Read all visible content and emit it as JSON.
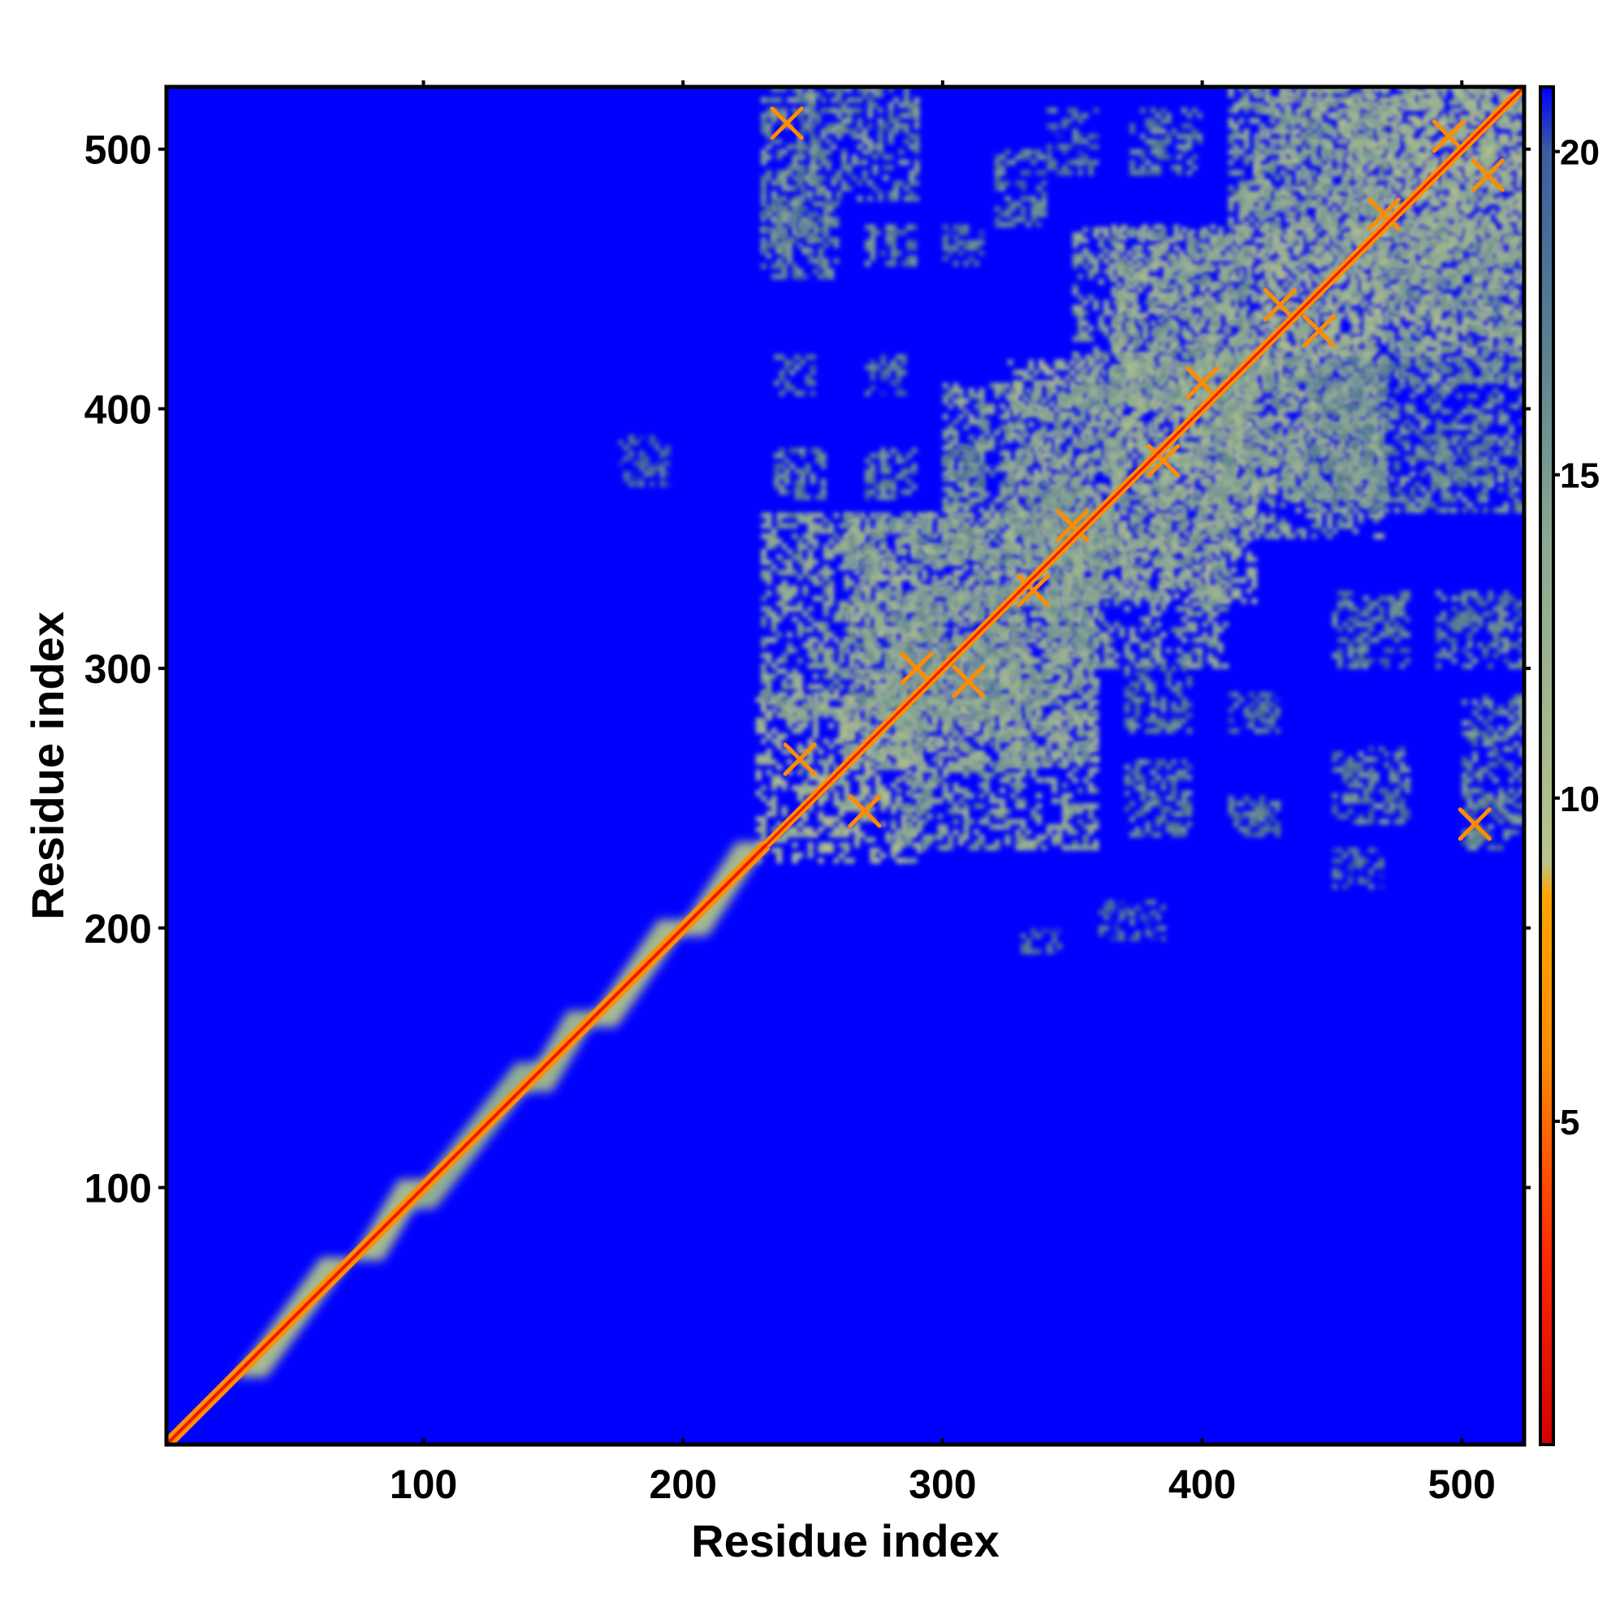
{
  "chart_data": {
    "type": "heatmap",
    "title": "",
    "xlabel": "Residue index",
    "ylabel": "Residue index",
    "xlim": [
      1,
      524
    ],
    "ylim": [
      1,
      524
    ],
    "x_ticks": [
      100,
      200,
      300,
      400,
      500
    ],
    "x_tick_labels": [
      "100",
      "200",
      "300",
      "400",
      "500"
    ],
    "y_ticks": [
      100,
      200,
      300,
      400,
      500
    ],
    "y_tick_labels": [
      "100",
      "200",
      "300",
      "400",
      "500"
    ],
    "colorbar": {
      "range": [
        0,
        21
      ],
      "ticks": [
        5,
        10,
        15,
        20
      ],
      "tick_labels": [
        "5",
        "10",
        "15",
        "20"
      ],
      "colors": [
        {
          "value": 0,
          "color": "#d40000"
        },
        {
          "value": 3,
          "color": "#ff2a00"
        },
        {
          "value": 6,
          "color": "#ff8c00"
        },
        {
          "value": 8.5,
          "color": "#ffa500"
        },
        {
          "value": 9,
          "color": "#b8c48a"
        },
        {
          "value": 14,
          "color": "#8aa893"
        },
        {
          "value": 17,
          "color": "#5a8090"
        },
        {
          "value": 20,
          "color": "#3a5ea0"
        },
        {
          "value": 21,
          "color": "#0000ff"
        }
      ]
    },
    "background_value": 21,
    "diagonal_value": 3.8,
    "diagonal_segments": [
      {
        "from": 1,
        "to": 232,
        "width": 4
      },
      {
        "from": 232,
        "to": 524,
        "width": 3
      }
    ],
    "local_blocks": [
      {
        "x": [
          30,
          70
        ],
        "y": [
          30,
          70
        ],
        "value": 11
      },
      {
        "x": [
          75,
          100
        ],
        "y": [
          75,
          100
        ],
        "value": 11
      },
      {
        "x": [
          95,
          145
        ],
        "y": [
          95,
          145
        ],
        "value": 13
      },
      {
        "x": [
          140,
          165
        ],
        "y": [
          140,
          165
        ],
        "value": 12
      },
      {
        "x": [
          165,
          200
        ],
        "y": [
          165,
          200
        ],
        "value": 11
      },
      {
        "x": [
          200,
          230
        ],
        "y": [
          200,
          230
        ],
        "value": 11
      }
    ],
    "contact_regions": [
      {
        "x": [
          228,
          292
        ],
        "y": [
          225,
          290
        ],
        "value": 12
      },
      {
        "x": [
          262,
          360
        ],
        "y": [
          262,
          360
        ],
        "value": 12
      },
      {
        "x": [
          325,
          420
        ],
        "y": [
          325,
          420
        ],
        "value": 12
      },
      {
        "x": [
          365,
          470
        ],
        "y": [
          365,
          470
        ],
        "value": 12
      },
      {
        "x": [
          420,
          524
        ],
        "y": [
          420,
          524
        ],
        "value": 12
      },
      {
        "x": [
          455,
          524
        ],
        "y": [
          455,
          524
        ],
        "value": 12
      },
      {
        "x": [
          230,
          330
        ],
        "y": [
          280,
          360
        ],
        "value": 14
      },
      {
        "x": [
          280,
          360
        ],
        "y": [
          230,
          330
        ],
        "value": 14
      },
      {
        "x": [
          340,
          410
        ],
        "y": [
          300,
          370
        ],
        "value": 14
      },
      {
        "x": [
          300,
          370
        ],
        "y": [
          340,
          410
        ],
        "value": 14
      },
      {
        "x": [
          400,
          470
        ],
        "y": [
          350,
          420
        ],
        "value": 14
      },
      {
        "x": [
          350,
          420
        ],
        "y": [
          400,
          470
        ],
        "value": 14
      },
      {
        "x": [
          470,
          524
        ],
        "y": [
          410,
          470
        ],
        "value": 14
      },
      {
        "x": [
          410,
          470
        ],
        "y": [
          470,
          524
        ],
        "value": 14
      },
      {
        "x": [
          440,
          524
        ],
        "y": [
          360,
          420
        ],
        "value": 16
      },
      {
        "x": [
          500,
          524
        ],
        "y": [
          230,
          290
        ],
        "value": 16
      },
      {
        "x": [
          230,
          250
        ],
        "y": [
          460,
          524
        ],
        "value": 16
      },
      {
        "x": [
          245,
          290
        ],
        "y": [
          480,
          524
        ],
        "value": 16
      }
    ],
    "crossing_patterns": [
      {
        "x": 245,
        "y": 265,
        "value": 6
      },
      {
        "x": 270,
        "y": 245,
        "value": 6
      },
      {
        "x": 290,
        "y": 300,
        "value": 6
      },
      {
        "x": 310,
        "y": 295,
        "value": 6
      },
      {
        "x": 335,
        "y": 330,
        "value": 6
      },
      {
        "x": 350,
        "y": 355,
        "value": 6
      },
      {
        "x": 385,
        "y": 380,
        "value": 6
      },
      {
        "x": 400,
        "y": 410,
        "value": 6
      },
      {
        "x": 430,
        "y": 440,
        "value": 6
      },
      {
        "x": 445,
        "y": 430,
        "value": 6
      },
      {
        "x": 470,
        "y": 475,
        "value": 6
      },
      {
        "x": 495,
        "y": 505,
        "value": 6
      },
      {
        "x": 510,
        "y": 490,
        "value": 6
      },
      {
        "x": 240,
        "y": 510,
        "value": 6
      },
      {
        "x": 505,
        "y": 240,
        "value": 6
      }
    ],
    "scattered_patches": [
      {
        "x": [
          230,
          260
        ],
        "y": [
          450,
          480
        ],
        "value": 17
      },
      {
        "x": [
          270,
          290
        ],
        "y": [
          455,
          470
        ],
        "value": 17
      },
      {
        "x": [
          300,
          315
        ],
        "y": [
          455,
          470
        ],
        "value": 18
      },
      {
        "x": [
          320,
          340
        ],
        "y": [
          470,
          500
        ],
        "value": 17
      },
      {
        "x": [
          340,
          360
        ],
        "y": [
          490,
          515
        ],
        "value": 18
      },
      {
        "x": [
          372,
          400
        ],
        "y": [
          490,
          515
        ],
        "value": 17
      },
      {
        "x": [
          235,
          250
        ],
        "y": [
          405,
          420
        ],
        "value": 17
      },
      {
        "x": [
          270,
          285
        ],
        "y": [
          405,
          420
        ],
        "value": 18
      },
      {
        "x": [
          235,
          255
        ],
        "y": [
          365,
          385
        ],
        "value": 17
      },
      {
        "x": [
          270,
          290
        ],
        "y": [
          365,
          385
        ],
        "value": 17
      },
      {
        "x": [
          300,
          315
        ],
        "y": [
          370,
          385
        ],
        "value": 17
      },
      {
        "x": [
          490,
          524
        ],
        "y": [
          370,
          390
        ],
        "value": 17
      },
      {
        "x": [
          450,
          480
        ],
        "y": [
          300,
          330
        ],
        "value": 17
      },
      {
        "x": [
          490,
          524
        ],
        "y": [
          300,
          330
        ],
        "value": 17
      },
      {
        "x": [
          450,
          480
        ],
        "y": [
          240,
          270
        ],
        "value": 17
      },
      {
        "x": [
          410,
          430
        ],
        "y": [
          235,
          250
        ],
        "value": 18
      },
      {
        "x": [
          370,
          395
        ],
        "y": [
          235,
          265
        ],
        "value": 17
      },
      {
        "x": [
          370,
          395
        ],
        "y": [
          275,
          300
        ],
        "value": 17
      },
      {
        "x": [
          410,
          430
        ],
        "y": [
          275,
          290
        ],
        "value": 18
      },
      {
        "x": [
          360,
          385
        ],
        "y": [
          195,
          210
        ],
        "value": 19
      },
      {
        "x": [
          330,
          345
        ],
        "y": [
          190,
          200
        ],
        "value": 19
      },
      {
        "x": [
          175,
          195
        ],
        "y": [
          370,
          390
        ],
        "value": 19
      },
      {
        "x": [
          450,
          470
        ],
        "y": [
          215,
          230
        ],
        "value": 19
      }
    ]
  }
}
